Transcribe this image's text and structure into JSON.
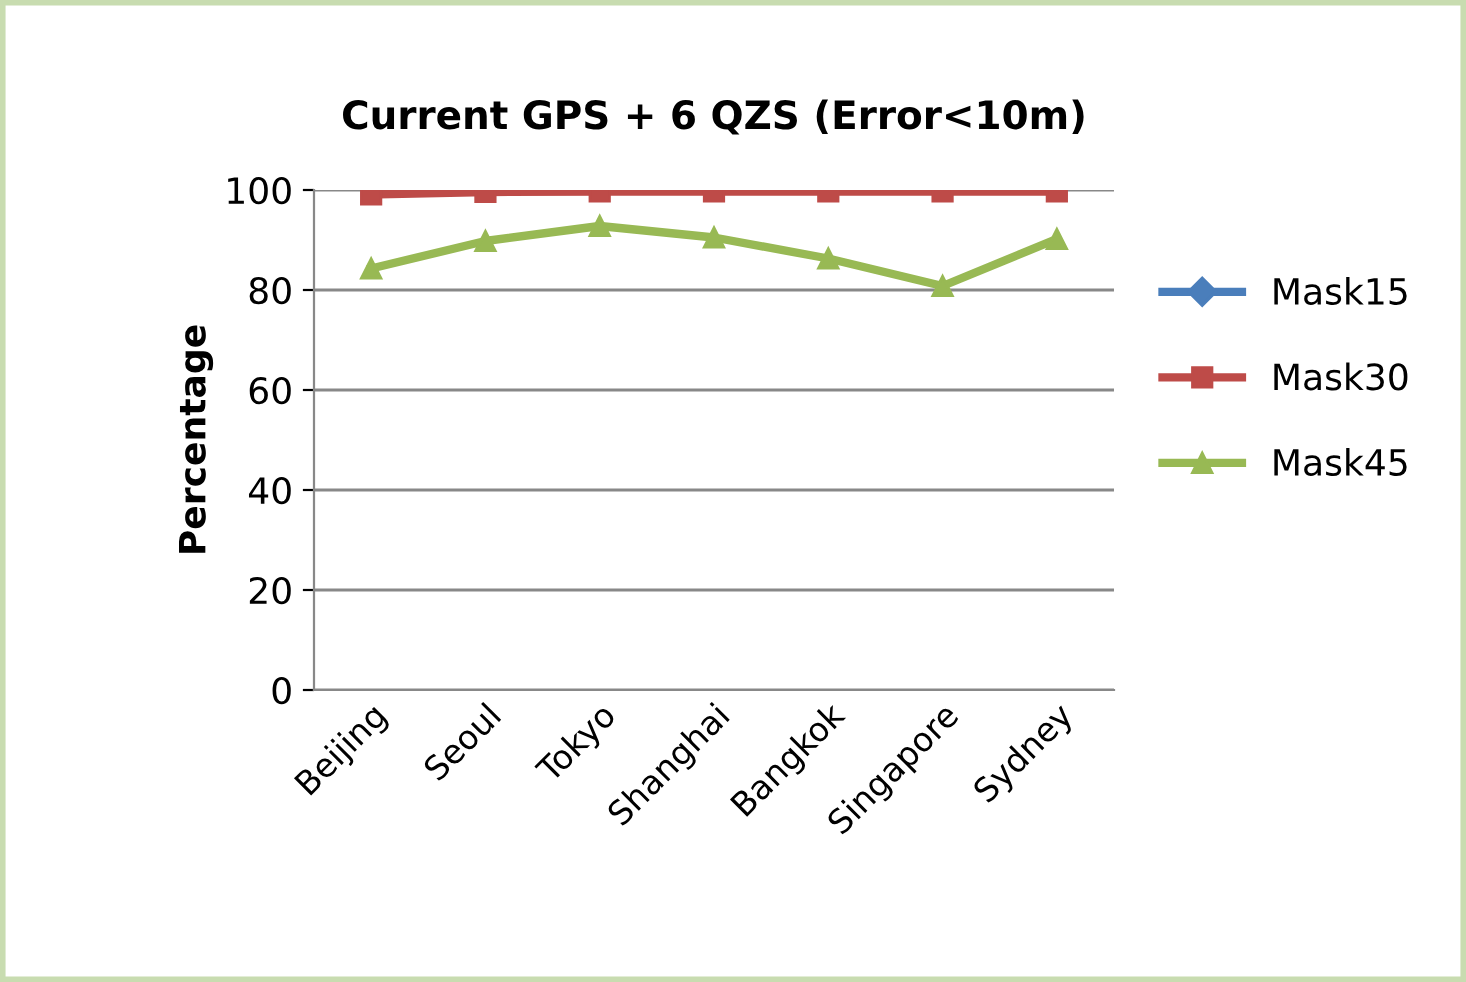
{
  "chart_data": {
    "type": "line",
    "title": "Current GPS + 6 QZS (Error<10m)",
    "ylabel": "Percentage",
    "categories": [
      "Beijing",
      "Seoul",
      "Tokyo",
      "Shanghai",
      "Bangkok",
      "Singapore",
      "Sydney"
    ],
    "series": [
      {
        "name": "Mask15",
        "color": "#4a7ebb",
        "marker": "diamond",
        "values": [
          null,
          null,
          null,
          null,
          null,
          null,
          null
        ]
      },
      {
        "name": "Mask30",
        "color": "#be4b48",
        "marker": "square",
        "values": [
          99.1,
          99.6,
          99.7,
          99.7,
          99.7,
          99.7,
          99.7
        ]
      },
      {
        "name": "Mask45",
        "color": "#98b954",
        "marker": "triangle",
        "values": [
          84.3,
          89.8,
          92.8,
          90.5,
          86.3,
          80.8,
          90.2
        ]
      }
    ],
    "ylim": [
      0,
      100
    ],
    "yticks": [
      0,
      20,
      40,
      60,
      80,
      100
    ],
    "grid": "y",
    "legend": "right"
  }
}
